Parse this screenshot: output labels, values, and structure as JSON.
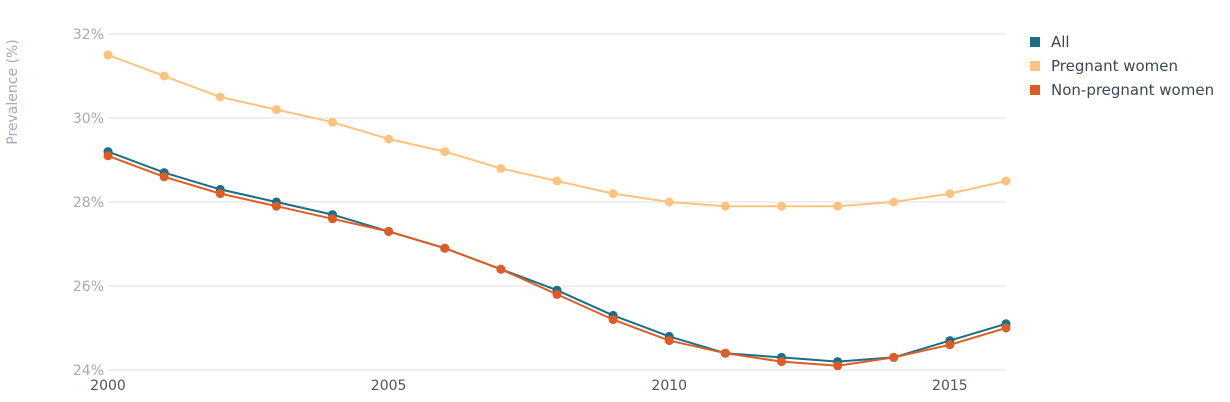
{
  "chart_data": {
    "type": "line",
    "title": "",
    "xlabel": "",
    "ylabel": "Prevalence (%)",
    "x": [
      2000,
      2001,
      2002,
      2003,
      2004,
      2005,
      2006,
      2007,
      2008,
      2009,
      2010,
      2011,
      2012,
      2013,
      2014,
      2015,
      2016
    ],
    "xlim": [
      2000,
      2016
    ],
    "ylim": [
      24,
      32
    ],
    "x_ticks": [
      2000,
      2005,
      2010,
      2015
    ],
    "x_tick_labels": [
      "2000",
      "2005",
      "2010",
      "2015"
    ],
    "y_ticks": [
      24,
      26,
      28,
      30,
      32
    ],
    "y_tick_labels": [
      "24%",
      "26%",
      "28%",
      "30%",
      "32%"
    ],
    "grid": true,
    "legend_position": "top-right",
    "series": [
      {
        "name": "All",
        "color": "#1a6e88",
        "values": [
          29.2,
          28.7,
          28.3,
          28.0,
          27.7,
          27.3,
          26.9,
          26.4,
          25.9,
          25.3,
          24.8,
          24.4,
          24.3,
          24.2,
          24.3,
          24.7,
          25.1
        ]
      },
      {
        "name": "Pregnant women",
        "color": "#fbc37e",
        "values": [
          31.5,
          31.0,
          30.5,
          30.2,
          29.9,
          29.5,
          29.2,
          28.8,
          28.5,
          28.2,
          28.0,
          27.9,
          27.9,
          27.9,
          28.0,
          28.2,
          28.5
        ]
      },
      {
        "name": "Non-pregnant women",
        "color": "#e05c24",
        "values": [
          29.1,
          28.6,
          28.2,
          27.9,
          27.6,
          27.3,
          26.9,
          26.4,
          25.8,
          25.2,
          24.7,
          24.4,
          24.2,
          24.1,
          24.3,
          24.6,
          25.0
        ]
      }
    ]
  }
}
